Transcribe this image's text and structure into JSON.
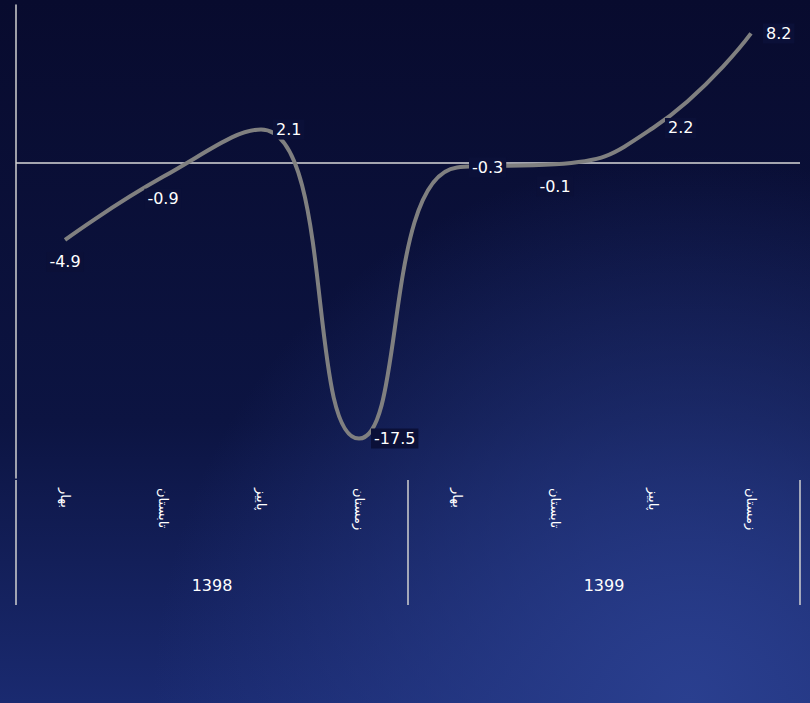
{
  "chart_data": {
    "type": "line",
    "categories": [
      "بهار",
      "تابستان",
      "پاییز",
      "زمستان",
      "بهار",
      "تابستان",
      "پاییز",
      "زمستان"
    ],
    "values": [
      -4.9,
      -0.9,
      2.1,
      -17.5,
      -0.3,
      -0.1,
      2.2,
      8.2
    ],
    "x_groups": [
      "1398",
      "1399"
    ],
    "color": "#808080",
    "ylim": [
      -20,
      10
    ],
    "yticks": [
      0
    ],
    "tick_labels": "x",
    "data_labels": true,
    "grid": true,
    "line_style": "solid"
  }
}
